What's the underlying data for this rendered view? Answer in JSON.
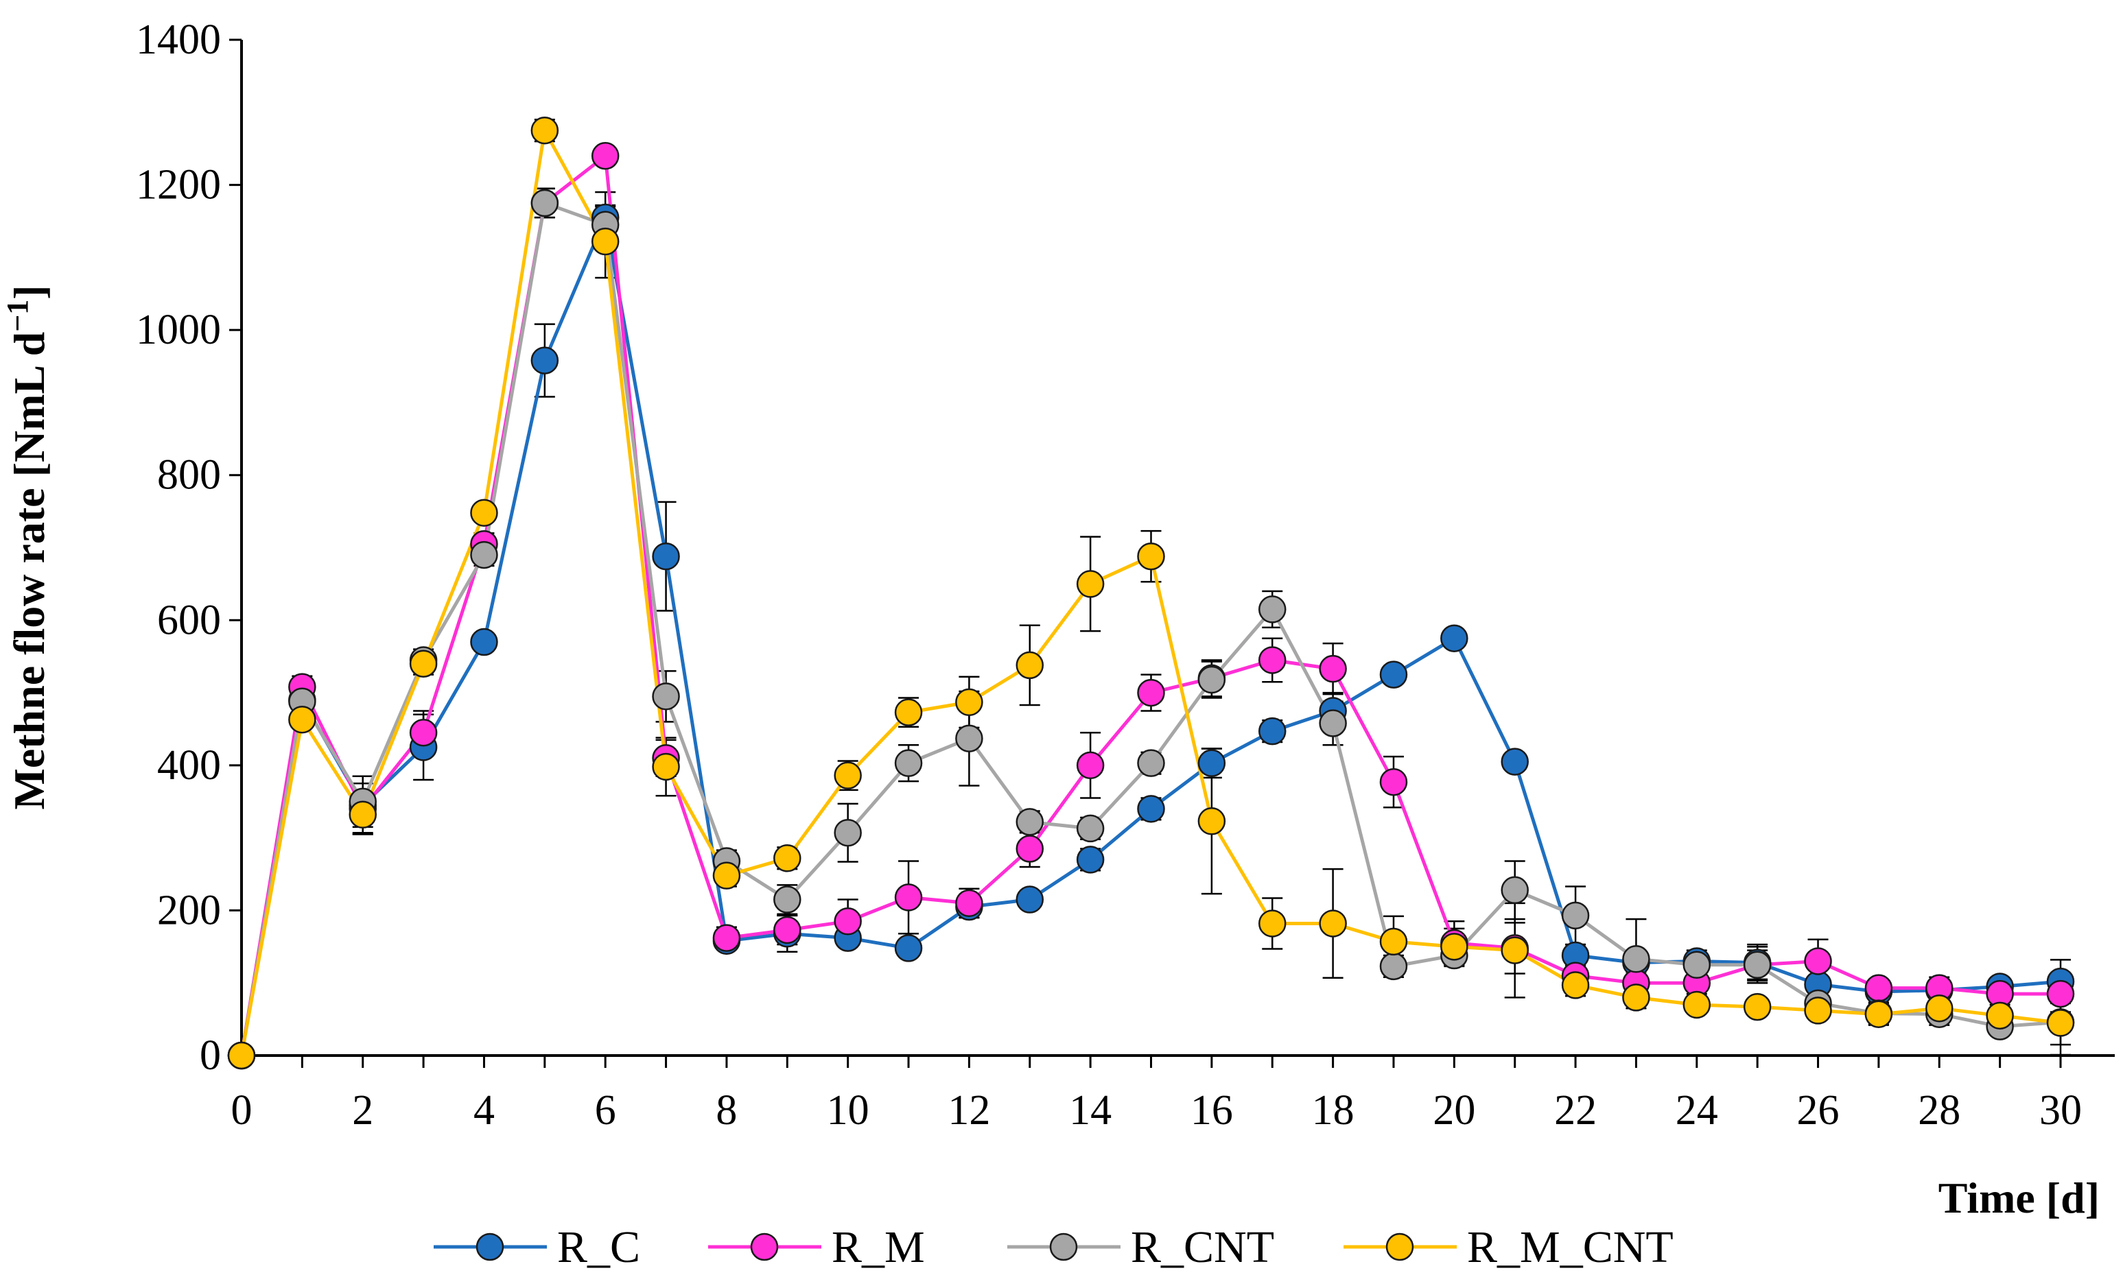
{
  "chart_data": {
    "type": "line",
    "title": "",
    "xlabel": "Time [d]",
    "ylabel": "Methne flow rate [NmL d",
    "ylabel_sup": "−1",
    "ylabel_close": "]",
    "xlim": [
      0,
      30
    ],
    "ylim": [
      0,
      1400
    ],
    "x_ticks": [
      0,
      2,
      4,
      6,
      8,
      10,
      12,
      14,
      16,
      18,
      20,
      22,
      24,
      26,
      28,
      30
    ],
    "y_ticks": [
      0,
      200,
      400,
      600,
      800,
      1000,
      1200,
      1400
    ],
    "x": [
      0,
      1,
      2,
      3,
      4,
      5,
      6,
      7,
      8,
      9,
      10,
      11,
      12,
      13,
      14,
      15,
      16,
      17,
      18,
      19,
      20,
      21,
      22,
      23,
      24,
      25,
      26,
      27,
      28,
      29,
      30
    ],
    "legend_position": "bottom",
    "series": [
      {
        "name": "R_C",
        "color": "#1f6fbf",
        "values": [
          0,
          490,
          345,
          425,
          570,
          958,
          1155,
          688,
          158,
          168,
          162,
          148,
          205,
          215,
          270,
          340,
          403,
          447,
          475,
          525,
          575,
          405,
          138,
          128,
          130,
          128,
          98,
          88,
          90,
          95,
          102
        ],
        "errors": [
          0,
          10,
          40,
          45,
          10,
          50,
          35,
          75,
          10,
          25,
          10,
          10,
          15,
          10,
          15,
          15,
          20,
          15,
          25,
          10,
          10,
          10,
          15,
          10,
          15,
          25,
          10,
          10,
          10,
          10,
          30
        ]
      },
      {
        "name": "R_M",
        "color": "#ff2fd5",
        "values": [
          0,
          508,
          340,
          445,
          705,
          1175,
          1240,
          410,
          162,
          173,
          185,
          218,
          210,
          285,
          400,
          500,
          520,
          545,
          533,
          377,
          155,
          148,
          110,
          100,
          100,
          125,
          130,
          93,
          93,
          85,
          85
        ],
        "errors": [
          0,
          15,
          35,
          30,
          15,
          20,
          10,
          25,
          15,
          20,
          30,
          50,
          20,
          25,
          45,
          25,
          25,
          30,
          35,
          35,
          30,
          35,
          15,
          15,
          15,
          20,
          30,
          10,
          15,
          15,
          25
        ]
      },
      {
        "name": "R_CNT",
        "color": "#a6a6a6",
        "values": [
          0,
          488,
          350,
          545,
          690,
          1175,
          1145,
          495,
          268,
          215,
          307,
          403,
          437,
          322,
          313,
          403,
          518,
          615,
          458,
          123,
          138,
          228,
          193,
          133,
          125,
          125,
          72,
          58,
          57,
          40,
          46
        ],
        "errors": [
          0,
          15,
          35,
          15,
          15,
          20,
          25,
          35,
          15,
          20,
          40,
          25,
          65,
          15,
          15,
          15,
          25,
          25,
          30,
          15,
          15,
          40,
          40,
          55,
          15,
          25,
          20,
          15,
          15,
          10,
          45
        ]
      },
      {
        "name": "R_M_CNT",
        "color": "#ffc000",
        "values": [
          0,
          463,
          332,
          540,
          748,
          1275,
          1122,
          398,
          248,
          272,
          386,
          473,
          487,
          538,
          650,
          688,
          323,
          182,
          182,
          157,
          150,
          145,
          97,
          80,
          70,
          67,
          62,
          57,
          65,
          55,
          45
        ],
        "errors": [
          0,
          10,
          25,
          15,
          10,
          15,
          50,
          40,
          15,
          15,
          20,
          20,
          35,
          55,
          65,
          35,
          100,
          35,
          75,
          35,
          25,
          65,
          15,
          15,
          10,
          10,
          10,
          15,
          15,
          10,
          30
        ]
      }
    ]
  }
}
